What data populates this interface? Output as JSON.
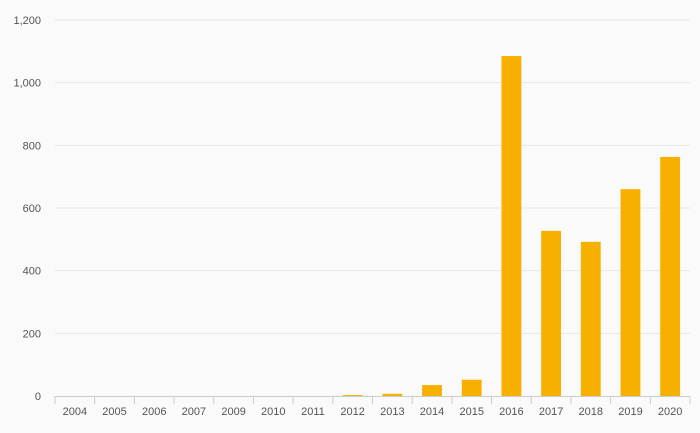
{
  "chart_data": {
    "type": "bar",
    "title": "",
    "xlabel": "",
    "ylabel": "",
    "categories": [
      "2004",
      "2005",
      "2006",
      "2007",
      "2009",
      "2010",
      "2011",
      "2012",
      "2013",
      "2014",
      "2015",
      "2016",
      "2017",
      "2018",
      "2019",
      "2020"
    ],
    "values": [
      0,
      0,
      0,
      0,
      0,
      0,
      0,
      3,
      7,
      35,
      52,
      1085,
      527,
      492,
      660,
      763
    ],
    "ylim": [
      0,
      1200
    ],
    "yticks": [
      0,
      200,
      400,
      600,
      800,
      1000,
      1200
    ],
    "ytick_labels": [
      "0",
      "200",
      "400",
      "600",
      "800",
      "1,000",
      "1,200"
    ],
    "grid": true,
    "legend": "none",
    "bar_color": "#f8b000"
  }
}
